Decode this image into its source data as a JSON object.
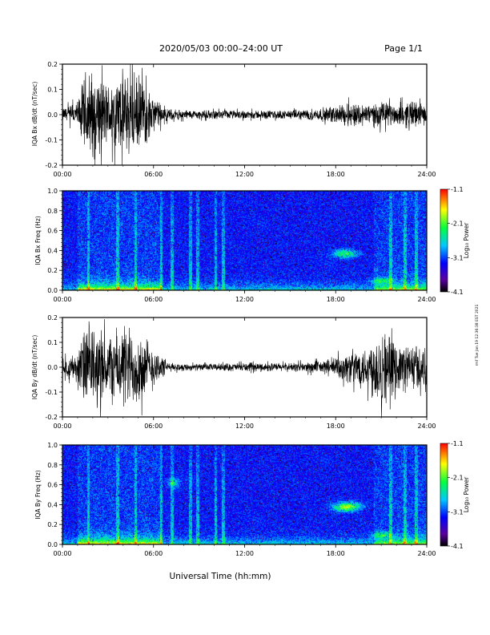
{
  "header": {
    "title": "2020/05/03  00:00–24:00 UT",
    "page": "Page 1/1"
  },
  "x_axis": {
    "title": "Universal Time (hh:mm)",
    "ticks": [
      "00:00",
      "06:00",
      "12:00",
      "18:00",
      "24:00"
    ]
  },
  "colorbar": {
    "label": "Log₁₀ Power",
    "ticks": [
      "-1.1",
      "-2.1",
      "-3.1",
      "-4.1"
    ]
  },
  "side_note": "rmf Tue Jan 19 12:36:38 EST 2021",
  "chart_data": [
    {
      "type": "line",
      "ylabel": "IQA Bx dB/dt (nT/sec)",
      "ylim": [
        -0.2,
        0.2
      ],
      "yticks": [
        "0.2",
        "0.1",
        "0.0",
        "-0.1",
        "-0.2"
      ],
      "xlim": [
        "00:00",
        "24:00"
      ],
      "envelope": {
        "hours": [
          0,
          1,
          1.5,
          2,
          3,
          4,
          5,
          6,
          7,
          9,
          12,
          15,
          17,
          18,
          19,
          20,
          21,
          22,
          23,
          24
        ],
        "amplitude": [
          0.03,
          0.06,
          0.2,
          0.2,
          0.14,
          0.2,
          0.18,
          0.08,
          0.025,
          0.02,
          0.02,
          0.02,
          0.03,
          0.04,
          0.06,
          0.05,
          0.06,
          0.05,
          0.07,
          0.04
        ]
      }
    },
    {
      "type": "heatmap",
      "ylabel": "IQA Bx Freq (Hz)",
      "ylim": [
        0.0,
        1.0
      ],
      "yticks": [
        "1.0",
        "0.8",
        "0.6",
        "0.4",
        "0.2",
        "0.0"
      ],
      "xlim": [
        "00:00",
        "24:00"
      ],
      "zlim": [
        -4.1,
        -1.1
      ]
    },
    {
      "type": "line",
      "ylabel": "IQA By dB/dt (nT/sec)",
      "ylim": [
        -0.2,
        0.2
      ],
      "yticks": [
        "0.2",
        "0.1",
        "0.0",
        "-0.1",
        "-0.2"
      ],
      "xlim": [
        "00:00",
        "24:00"
      ],
      "envelope": {
        "hours": [
          0,
          1,
          1.5,
          2,
          3,
          4,
          5,
          6,
          7,
          9,
          12,
          15,
          17,
          18,
          19,
          20,
          21,
          22,
          23,
          24
        ],
        "amplitude": [
          0.04,
          0.07,
          0.2,
          0.2,
          0.15,
          0.2,
          0.18,
          0.1,
          0.02,
          0.015,
          0.02,
          0.02,
          0.03,
          0.05,
          0.08,
          0.1,
          0.2,
          0.1,
          0.12,
          0.08
        ]
      }
    },
    {
      "type": "heatmap",
      "ylabel": "IQA By Freq (Hz)",
      "ylim": [
        0.0,
        1.0
      ],
      "yticks": [
        "1.0",
        "0.8",
        "0.6",
        "0.4",
        "0.2",
        "0.0"
      ],
      "xlim": [
        "00:00",
        "24:00"
      ],
      "zlim": [
        -4.1,
        -1.1
      ]
    }
  ]
}
